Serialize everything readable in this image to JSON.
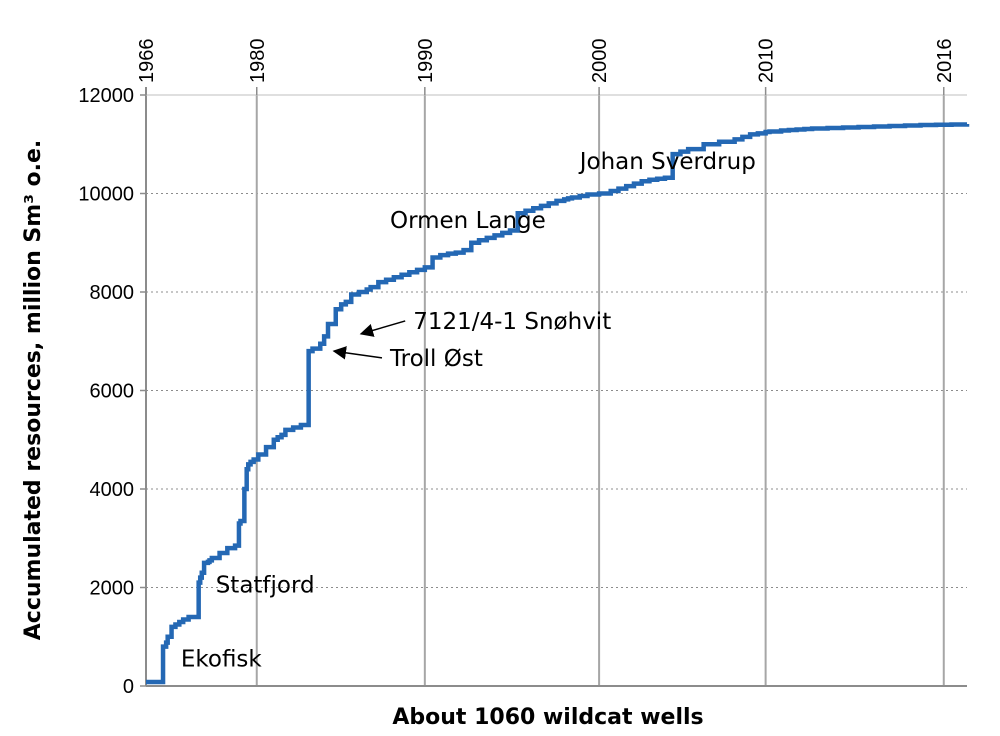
{
  "chart_data": {
    "type": "line",
    "xlabel": "About 1060 wildcat wells",
    "ylabel": "Accumulated resources, million Sm³ o.e.",
    "x_range": [
      0,
      1060
    ],
    "ylim": [
      0,
      12000
    ],
    "y_ticks": [
      0,
      2000,
      4000,
      6000,
      8000,
      10000,
      12000
    ],
    "y_tick_labels": [
      "0",
      "2000",
      "4000",
      "6000",
      "8000",
      "10000",
      "12000"
    ],
    "top_axis": {
      "labels": [
        "1966",
        "1980",
        "1990",
        "2000",
        "2010",
        "2016"
      ],
      "well_index": [
        0,
        143,
        360,
        585,
        800,
        1030
      ]
    },
    "grid": {
      "horizontal": "dotted",
      "vertical": "solid"
    },
    "line_color": "#2468b4",
    "series": [
      {
        "x": [
          0,
          20,
          22,
          26,
          28,
          33,
          38,
          43,
          48,
          55,
          62,
          68,
          70,
          72,
          75,
          80,
          82,
          85,
          95,
          105,
          115,
          120,
          122,
          127,
          130,
          132,
          135,
          139,
          145,
          155,
          165,
          170,
          175,
          180,
          190,
          200,
          210,
          215,
          225,
          230,
          235,
          245,
          252,
          258,
          265,
          275,
          285,
          290,
          300,
          310,
          320,
          330,
          340,
          350,
          360,
          370,
          380,
          390,
          400,
          410,
          420,
          430,
          440,
          450,
          460,
          470,
          480,
          490,
          500,
          510,
          520,
          530,
          540,
          545,
          550,
          560,
          570,
          585,
          600,
          610,
          620,
          630,
          640,
          650,
          660,
          670,
          680,
          690,
          700,
          720,
          740,
          760,
          770,
          780,
          790,
          800,
          805,
          820,
          830,
          840,
          850,
          860,
          880,
          900,
          920,
          940,
          960,
          980,
          1000,
          1020,
          1040,
          1060
        ],
        "y": [
          80,
          80,
          800,
          880,
          1000,
          1200,
          1250,
          1300,
          1350,
          1400,
          1400,
          2100,
          2200,
          2300,
          2500,
          2520,
          2550,
          2600,
          2700,
          2800,
          2850,
          3300,
          3350,
          4000,
          4400,
          4500,
          4550,
          4600,
          4700,
          4850,
          5000,
          5050,
          5100,
          5200,
          5250,
          5300,
          6800,
          6850,
          6950,
          7100,
          7350,
          7650,
          7750,
          7800,
          7950,
          8000,
          8050,
          8100,
          8200,
          8250,
          8300,
          8350,
          8400,
          8450,
          8500,
          8700,
          8750,
          8780,
          8800,
          8850,
          9000,
          9050,
          9100,
          9150,
          9200,
          9250,
          9600,
          9650,
          9700,
          9750,
          9800,
          9850,
          9880,
          9900,
          9920,
          9950,
          9980,
          10000,
          10050,
          10100,
          10150,
          10200,
          10250,
          10280,
          10300,
          10320,
          10800,
          10850,
          10900,
          11000,
          11050,
          11100,
          11150,
          11200,
          11220,
          11250,
          11260,
          11280,
          11290,
          11300,
          11310,
          11320,
          11330,
          11340,
          11350,
          11360,
          11370,
          11380,
          11390,
          11395,
          11400,
          11410
        ]
      }
    ],
    "annotations": [
      {
        "text": "Ekofisk",
        "x": 45,
        "y": 400
      },
      {
        "text": "Statfjord",
        "x": 90,
        "y": 1900
      },
      {
        "text": "Troll Øst",
        "x": 315,
        "y": 6500,
        "arrow_to": [
          240,
          6800
        ]
      },
      {
        "text": "7121/4-1 Snøhvit",
        "x": 345,
        "y": 7250,
        "arrow_to": [
          275,
          7150
        ]
      },
      {
        "text": "Ormen Lange",
        "x": 315,
        "y": 9300
      },
      {
        "text": "Johan Sverdrup",
        "x": 560,
        "y": 10500
      }
    ]
  }
}
